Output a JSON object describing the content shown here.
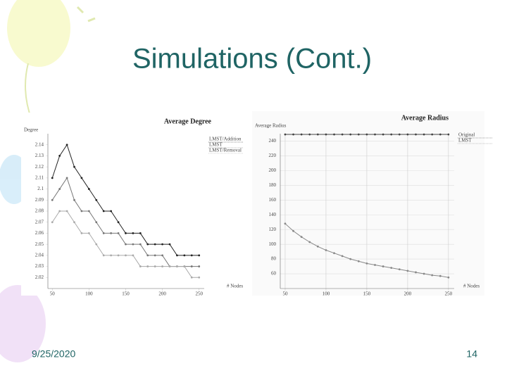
{
  "slide": {
    "title": "Simulations (Cont.)",
    "date": "9/25/2020",
    "page": "14"
  },
  "chart_data": [
    {
      "type": "line",
      "title": "Average Degree",
      "ylabel": "Degree",
      "xlabel": "# Nodes",
      "x": [
        50,
        60,
        70,
        80,
        90,
        100,
        110,
        120,
        130,
        140,
        150,
        160,
        170,
        180,
        190,
        200,
        210,
        220,
        230,
        240,
        250
      ],
      "series": [
        {
          "name": "LMST/Addition",
          "color": "#222222",
          "values": [
            2.11,
            2.13,
            2.14,
            2.12,
            2.11,
            2.1,
            2.09,
            2.08,
            2.08,
            2.07,
            2.06,
            2.06,
            2.06,
            2.05,
            2.05,
            2.05,
            2.05,
            2.04,
            2.04,
            2.04,
            2.04
          ]
        },
        {
          "name": "LMST",
          "color": "#777777",
          "values": [
            2.09,
            2.1,
            2.11,
            2.09,
            2.08,
            2.08,
            2.07,
            2.06,
            2.06,
            2.06,
            2.05,
            2.05,
            2.05,
            2.04,
            2.04,
            2.04,
            2.03,
            2.03,
            2.03,
            2.03,
            2.03
          ]
        },
        {
          "name": "LMST/Removal",
          "color": "#aaaaaa",
          "values": [
            2.07,
            2.08,
            2.08,
            2.07,
            2.06,
            2.06,
            2.05,
            2.04,
            2.04,
            2.04,
            2.04,
            2.04,
            2.03,
            2.03,
            2.03,
            2.03,
            2.03,
            2.03,
            2.03,
            2.02,
            2.02
          ]
        }
      ],
      "xlim": [
        44,
        257
      ],
      "ylim": [
        2.01,
        2.15
      ],
      "xticks": [
        50,
        100,
        150,
        200,
        250
      ],
      "yticks": [
        2.02,
        2.03,
        2.04,
        2.05,
        2.06,
        2.07,
        2.08,
        2.09,
        2.1,
        2.11,
        2.12,
        2.13,
        2.14
      ],
      "grid": false
    },
    {
      "type": "line",
      "title": "Average Radius",
      "ylabel": "Average Radius",
      "xlabel": "# Nodes",
      "x": [
        50,
        60,
        70,
        80,
        90,
        100,
        110,
        120,
        130,
        140,
        150,
        160,
        170,
        180,
        190,
        200,
        210,
        220,
        230,
        240,
        250
      ],
      "series": [
        {
          "name": "Original",
          "color": "#444444",
          "values": [
            249,
            249,
            249,
            249,
            249,
            249,
            249,
            249,
            249,
            249,
            249,
            249,
            249,
            249,
            249,
            249,
            249,
            249,
            249,
            249,
            249
          ]
        },
        {
          "name": "LMST",
          "color": "#888888",
          "values": [
            128,
            118,
            110,
            103,
            97,
            92,
            88,
            84,
            80,
            77,
            74,
            72,
            70,
            68,
            66,
            64,
            62,
            60,
            58,
            57,
            55
          ]
        }
      ],
      "xlim": [
        44,
        257
      ],
      "ylim": [
        40,
        250
      ],
      "xticks": [
        50,
        100,
        150,
        200,
        250
      ],
      "yticks": [
        60,
        80,
        100,
        120,
        140,
        160,
        180,
        200,
        220,
        240
      ],
      "grid": true
    }
  ]
}
